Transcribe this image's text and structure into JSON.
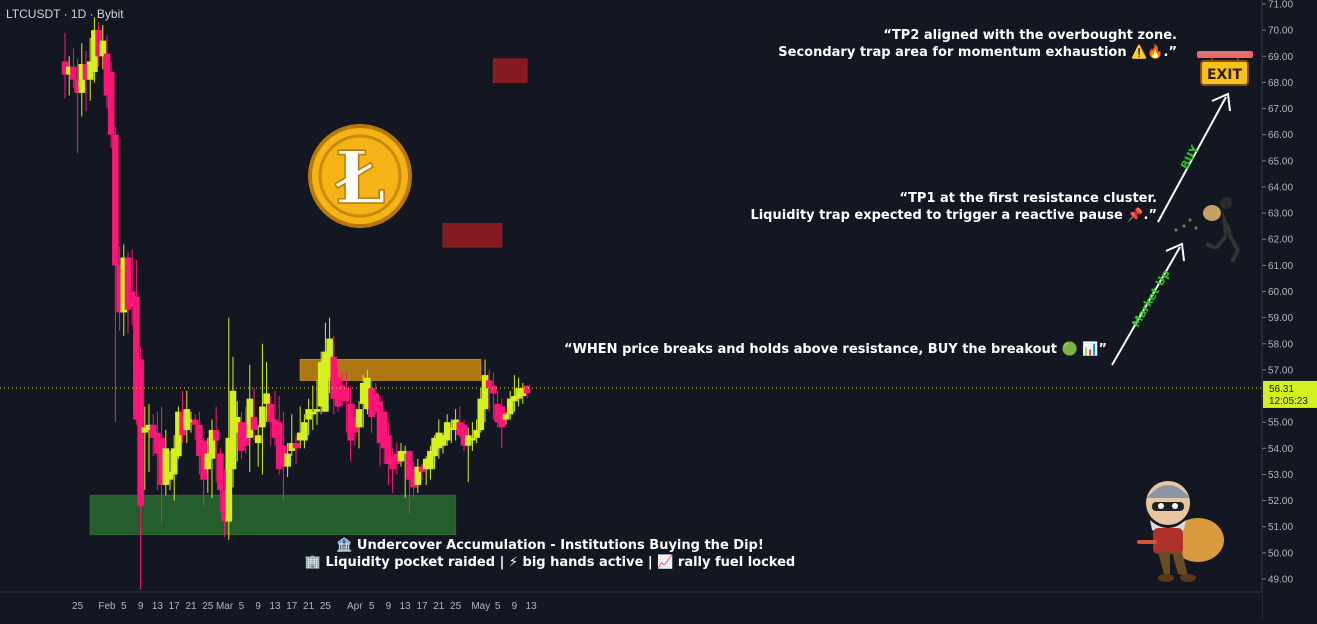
{
  "header": {
    "title": "LTCUSDT · 1D · Bybit"
  },
  "price_tag": {
    "price": "56.31",
    "countdown": "12:05:23"
  },
  "annotations": {
    "tp2_line1": "“TP2 aligned with the overbought zone.",
    "tp2_line2": "Secondary trap area for momentum exhaustion ⚠️🔥.”",
    "tp1_line1": "“TP1 at the first resistance cluster.",
    "tp1_line2": "Liquidity trap expected to trigger a reactive pause 📌.”",
    "breakout": "“WHEN price breaks and holds above resistance, BUY the breakout 🟢 📊”",
    "accum_line1": "🏦 Undercover Accumulation - Institutions Buying the Dip!",
    "accum_line2": "🏢 Liquidity pocket raided | ⚡ big hands active | 📈 rally fuel locked",
    "arrow1_label": "Market Up",
    "arrow2_label": "BUY",
    "exit_sign": "EXIT",
    "coin_symbol": "Ł"
  },
  "colors": {
    "bull": "#d4f01e",
    "bear": "#ff1478",
    "zone_red": "#9b1b22",
    "zone_orange": "#c8870e",
    "zone_green": "#2a6a2e",
    "arrow_label": "#29c41d"
  },
  "chart_data": {
    "type": "candlestick",
    "y_axis": {
      "min": 48.5,
      "max": 71.0,
      "ticks": [
        "49.00",
        "50.00",
        "51.00",
        "52.00",
        "53.00",
        "54.00",
        "55.00",
        "56.00",
        "57.00",
        "58.00",
        "59.00",
        "60.00",
        "61.00",
        "62.00",
        "63.00",
        "64.00",
        "65.00",
        "66.00",
        "67.00",
        "68.00",
        "69.00",
        "70.00",
        "71.00"
      ]
    },
    "x_axis": {
      "ticks": [
        {
          "label": "25",
          "date": "2025-01-25"
        },
        {
          "label": "Feb",
          "date": "2025-02-01"
        },
        {
          "label": "5",
          "date": "2025-02-05"
        },
        {
          "label": "9",
          "date": "2025-02-09"
        },
        {
          "label": "13",
          "date": "2025-02-13"
        },
        {
          "label": "17",
          "date": "2025-02-17"
        },
        {
          "label": "21",
          "date": "2025-02-21"
        },
        {
          "label": "25",
          "date": "2025-02-25"
        },
        {
          "label": "Mar",
          "date": "2025-03-01"
        },
        {
          "label": "5",
          "date": "2025-03-05"
        },
        {
          "label": "9",
          "date": "2025-03-09"
        },
        {
          "label": "13",
          "date": "2025-03-13"
        },
        {
          "label": "17",
          "date": "2025-03-17"
        },
        {
          "label": "21",
          "date": "2025-03-21"
        },
        {
          "label": "25",
          "date": "2025-03-25"
        },
        {
          "label": "Apr",
          "date": "2025-04-01"
        },
        {
          "label": "5",
          "date": "2025-04-05"
        },
        {
          "label": "9",
          "date": "2025-04-09"
        },
        {
          "label": "13",
          "date": "2025-04-13"
        },
        {
          "label": "17",
          "date": "2025-04-17"
        },
        {
          "label": "21",
          "date": "2025-04-21"
        },
        {
          "label": "25",
          "date": "2025-04-25"
        },
        {
          "label": "May",
          "date": "2025-05-01"
        },
        {
          "label": "5",
          "date": "2025-05-05"
        },
        {
          "label": "9",
          "date": "2025-05-09"
        },
        {
          "label": "13",
          "date": "2025-05-13"
        }
      ]
    },
    "current_price": 56.31,
    "candles": [
      {
        "d": "2025-01-22",
        "o": 68.8,
        "h": 69.9,
        "l": 67.4,
        "c": 68.3
      },
      {
        "d": "2025-01-23",
        "o": 68.3,
        "h": 69.0,
        "l": 67.5,
        "c": 68.6
      },
      {
        "d": "2025-01-24",
        "o": 68.6,
        "h": 69.3,
        "l": 67.8,
        "c": 68.1
      },
      {
        "d": "2025-01-25",
        "o": 68.1,
        "h": 68.9,
        "l": 65.3,
        "c": 67.6
      },
      {
        "d": "2025-01-26",
        "o": 67.6,
        "h": 69.5,
        "l": 66.7,
        "c": 68.7
      },
      {
        "d": "2025-01-27",
        "o": 68.7,
        "h": 69.2,
        "l": 66.9,
        "c": 68.1
      },
      {
        "d": "2025-01-28",
        "o": 68.1,
        "h": 69.7,
        "l": 67.3,
        "c": 68.8
      },
      {
        "d": "2025-01-29",
        "o": 68.4,
        "h": 70.5,
        "l": 68.0,
        "c": 70.0
      },
      {
        "d": "2025-01-30",
        "o": 70.0,
        "h": 70.3,
        "l": 68.6,
        "c": 69.0
      },
      {
        "d": "2025-01-31",
        "o": 69.0,
        "h": 70.2,
        "l": 68.5,
        "c": 69.6
      },
      {
        "d": "2025-02-01",
        "o": 69.1,
        "h": 69.8,
        "l": 67.0,
        "c": 67.5
      },
      {
        "d": "2025-02-02",
        "o": 68.4,
        "h": 68.8,
        "l": 65.5,
        "c": 66.0
      },
      {
        "d": "2025-02-03",
        "o": 66.0,
        "h": 66.3,
        "l": 55.0,
        "c": 61.0
      },
      {
        "d": "2025-02-04",
        "o": 61.0,
        "h": 61.7,
        "l": 58.5,
        "c": 59.2
      },
      {
        "d": "2025-02-05",
        "o": 59.2,
        "h": 61.8,
        "l": 58.3,
        "c": 61.3
      },
      {
        "d": "2025-02-06",
        "o": 61.3,
        "h": 61.5,
        "l": 58.4,
        "c": 59.3
      },
      {
        "d": "2025-02-07",
        "o": 60.0,
        "h": 61.6,
        "l": 58.7,
        "c": 59.4
      },
      {
        "d": "2025-02-08",
        "o": 59.8,
        "h": 61.2,
        "l": 54.9,
        "c": 55.1
      },
      {
        "d": "2025-02-09",
        "o": 57.4,
        "h": 57.9,
        "l": 48.6,
        "c": 51.8
      },
      {
        "d": "2025-02-10",
        "o": 54.6,
        "h": 55.6,
        "l": 52.4,
        "c": 54.8
      },
      {
        "d": "2025-02-11",
        "o": 54.7,
        "h": 55.7,
        "l": 53.1,
        "c": 54.9
      },
      {
        "d": "2025-02-12",
        "o": 54.9,
        "h": 55.3,
        "l": 53.7,
        "c": 54.4
      },
      {
        "d": "2025-02-13",
        "o": 54.6,
        "h": 55.4,
        "l": 52.4,
        "c": 53.8
      },
      {
        "d": "2025-02-14",
        "o": 54.4,
        "h": 55.6,
        "l": 51.1,
        "c": 52.6
      },
      {
        "d": "2025-02-15",
        "o": 52.6,
        "h": 54.7,
        "l": 52.2,
        "c": 54.0
      },
      {
        "d": "2025-02-16",
        "o": 52.8,
        "h": 53.9,
        "l": 52.4,
        "c": 53.1
      },
      {
        "d": "2025-02-17",
        "o": 53.0,
        "h": 54.5,
        "l": 52.0,
        "c": 54.0
      },
      {
        "d": "2025-02-18",
        "o": 53.7,
        "h": 55.6,
        "l": 53.6,
        "c": 55.4
      },
      {
        "d": "2025-02-19",
        "o": 55.4,
        "h": 56.2,
        "l": 54.2,
        "c": 54.5
      },
      {
        "d": "2025-02-20",
        "o": 54.7,
        "h": 56.2,
        "l": 54.2,
        "c": 55.5
      },
      {
        "d": "2025-02-21",
        "o": 55.0,
        "h": 55.4,
        "l": 54.6,
        "c": 55.1
      },
      {
        "d": "2025-02-22",
        "o": 55.1,
        "h": 55.3,
        "l": 54.3,
        "c": 54.9
      },
      {
        "d": "2025-02-23",
        "o": 54.9,
        "h": 55.4,
        "l": 53.0,
        "c": 53.7
      },
      {
        "d": "2025-02-24",
        "o": 54.3,
        "h": 54.4,
        "l": 51.8,
        "c": 52.8
      },
      {
        "d": "2025-02-25",
        "o": 53.2,
        "h": 54.4,
        "l": 52.3,
        "c": 53.8
      },
      {
        "d": "2025-02-26",
        "o": 53.6,
        "h": 55.1,
        "l": 52.1,
        "c": 54.7
      },
      {
        "d": "2025-02-27",
        "o": 54.7,
        "h": 55.6,
        "l": 52.7,
        "c": 54.3
      },
      {
        "d": "2025-02-28",
        "o": 53.8,
        "h": 54.0,
        "l": 51.6,
        "c": 52.4
      },
      {
        "d": "2025-03-01",
        "o": 52.4,
        "h": 53.2,
        "l": 50.6,
        "c": 51.2
      },
      {
        "d": "2025-03-02",
        "o": 51.2,
        "h": 59.0,
        "l": 50.5,
        "c": 54.4
      },
      {
        "d": "2025-03-03",
        "o": 53.2,
        "h": 57.5,
        "l": 52.5,
        "c": 56.2
      },
      {
        "d": "2025-03-04",
        "o": 54.6,
        "h": 55.8,
        "l": 53.5,
        "c": 55.2
      },
      {
        "d": "2025-03-05",
        "o": 55.0,
        "h": 55.4,
        "l": 53.6,
        "c": 53.9
      },
      {
        "d": "2025-03-06",
        "o": 55.0,
        "h": 55.6,
        "l": 53.8,
        "c": 54.1
      },
      {
        "d": "2025-03-07",
        "o": 54.4,
        "h": 57.2,
        "l": 53.1,
        "c": 55.9
      },
      {
        "d": "2025-03-08",
        "o": 55.2,
        "h": 56.3,
        "l": 54.3,
        "c": 54.7
      },
      {
        "d": "2025-03-09",
        "o": 54.2,
        "h": 54.9,
        "l": 53.3,
        "c": 54.5
      },
      {
        "d": "2025-03-10",
        "o": 54.8,
        "h": 58.0,
        "l": 53.0,
        "c": 55.6
      },
      {
        "d": "2025-03-11",
        "o": 55.7,
        "h": 57.3,
        "l": 55.0,
        "c": 56.1
      },
      {
        "d": "2025-03-12",
        "o": 55.7,
        "h": 56.0,
        "l": 54.1,
        "c": 55.0
      },
      {
        "d": "2025-03-13",
        "o": 55.1,
        "h": 56.2,
        "l": 54.1,
        "c": 54.4
      },
      {
        "d": "2025-03-14",
        "o": 55.0,
        "h": 56.0,
        "l": 53.0,
        "c": 53.2
      },
      {
        "d": "2025-03-15",
        "o": 54.1,
        "h": 55.4,
        "l": 52.0,
        "c": 53.3
      },
      {
        "d": "2025-03-16",
        "o": 53.3,
        "h": 54.2,
        "l": 52.9,
        "c": 53.8
      },
      {
        "d": "2025-03-17",
        "o": 53.9,
        "h": 55.3,
        "l": 53.7,
        "c": 54.2
      },
      {
        "d": "2025-03-18",
        "o": 54.2,
        "h": 54.5,
        "l": 53.4,
        "c": 54.0
      },
      {
        "d": "2025-03-19",
        "o": 54.3,
        "h": 55.6,
        "l": 54.0,
        "c": 54.6
      },
      {
        "d": "2025-03-20",
        "o": 54.3,
        "h": 55.3,
        "l": 54.0,
        "c": 55.0
      },
      {
        "d": "2025-03-21",
        "o": 55.1,
        "h": 55.9,
        "l": 54.5,
        "c": 55.5
      },
      {
        "d": "2025-03-22",
        "o": 55.3,
        "h": 56.4,
        "l": 54.7,
        "c": 55.4
      },
      {
        "d": "2025-03-23",
        "o": 55.4,
        "h": 56.6,
        "l": 54.9,
        "c": 55.5
      },
      {
        "d": "2025-03-24",
        "o": 55.6,
        "h": 57.7,
        "l": 55.3,
        "c": 57.3
      },
      {
        "d": "2025-03-25",
        "o": 55.4,
        "h": 58.8,
        "l": 55.4,
        "c": 57.7
      },
      {
        "d": "2025-03-26",
        "o": 56.7,
        "h": 59.0,
        "l": 56.1,
        "c": 58.2
      },
      {
        "d": "2025-03-27",
        "o": 57.5,
        "h": 58.3,
        "l": 55.3,
        "c": 55.9
      },
      {
        "d": "2025-03-28",
        "o": 56.7,
        "h": 57.1,
        "l": 55.4,
        "c": 55.6
      },
      {
        "d": "2025-03-29",
        "o": 56.4,
        "h": 56.9,
        "l": 55.6,
        "c": 55.8
      },
      {
        "d": "2025-03-30",
        "o": 56.3,
        "h": 56.9,
        "l": 54.6,
        "c": 55.8
      },
      {
        "d": "2025-03-31",
        "o": 55.7,
        "h": 56.4,
        "l": 53.5,
        "c": 54.3
      },
      {
        "d": "2025-04-01",
        "o": 55.2,
        "h": 55.7,
        "l": 54.1,
        "c": 54.6
      },
      {
        "d": "2025-04-02",
        "o": 54.8,
        "h": 55.8,
        "l": 54.0,
        "c": 55.5
      },
      {
        "d": "2025-04-03",
        "o": 55.7,
        "h": 56.8,
        "l": 54.8,
        "c": 56.5
      },
      {
        "d": "2025-04-04",
        "o": 55.5,
        "h": 57.0,
        "l": 55.3,
        "c": 56.7
      },
      {
        "d": "2025-04-05",
        "o": 56.3,
        "h": 56.7,
        "l": 54.6,
        "c": 55.2
      },
      {
        "d": "2025-04-06",
        "o": 56.1,
        "h": 56.5,
        "l": 55.3,
        "c": 55.4
      },
      {
        "d": "2025-04-07",
        "o": 55.8,
        "h": 56.0,
        "l": 53.3,
        "c": 54.2
      },
      {
        "d": "2025-04-08",
        "o": 55.4,
        "h": 55.4,
        "l": 53.4,
        "c": 54.0
      },
      {
        "d": "2025-04-09",
        "o": 54.5,
        "h": 55.0,
        "l": 52.6,
        "c": 53.4
      },
      {
        "d": "2025-04-10",
        "o": 53.7,
        "h": 54.0,
        "l": 52.3,
        "c": 53.2
      },
      {
        "d": "2025-04-11",
        "o": 53.8,
        "h": 54.2,
        "l": 53.0,
        "c": 53.4
      },
      {
        "d": "2025-04-12",
        "o": 53.5,
        "h": 54.2,
        "l": 53.3,
        "c": 53.9
      },
      {
        "d": "2025-04-13",
        "o": 53.8,
        "h": 54.1,
        "l": 52.1,
        "c": 53.9
      },
      {
        "d": "2025-04-14",
        "o": 53.9,
        "h": 53.9,
        "l": 51.5,
        "c": 52.8
      },
      {
        "d": "2025-04-15",
        "o": 53.2,
        "h": 53.5,
        "l": 52.1,
        "c": 52.5
      },
      {
        "d": "2025-04-16",
        "o": 52.6,
        "h": 53.6,
        "l": 52.3,
        "c": 53.3
      },
      {
        "d": "2025-04-17",
        "o": 53.3,
        "h": 53.4,
        "l": 52.8,
        "c": 53.1
      },
      {
        "d": "2025-04-18",
        "o": 53.2,
        "h": 53.7,
        "l": 52.6,
        "c": 53.6
      },
      {
        "d": "2025-04-19",
        "o": 53.2,
        "h": 54.1,
        "l": 52.8,
        "c": 53.9
      },
      {
        "d": "2025-04-20",
        "o": 53.7,
        "h": 54.5,
        "l": 53.2,
        "c": 54.4
      },
      {
        "d": "2025-04-21",
        "o": 54.0,
        "h": 55.1,
        "l": 53.6,
        "c": 54.6
      },
      {
        "d": "2025-04-22",
        "o": 54.1,
        "h": 54.6,
        "l": 53.8,
        "c": 54.5
      },
      {
        "d": "2025-04-23",
        "o": 54.3,
        "h": 55.3,
        "l": 54.1,
        "c": 55.0
      },
      {
        "d": "2025-04-24",
        "o": 54.7,
        "h": 55.1,
        "l": 54.2,
        "c": 54.8
      },
      {
        "d": "2025-04-25",
        "o": 54.7,
        "h": 55.5,
        "l": 54.3,
        "c": 55.1
      },
      {
        "d": "2025-04-26",
        "o": 55.0,
        "h": 55.6,
        "l": 54.4,
        "c": 54.5
      },
      {
        "d": "2025-04-27",
        "o": 54.9,
        "h": 55.1,
        "l": 53.9,
        "c": 54.1
      },
      {
        "d": "2025-04-28",
        "o": 54.1,
        "h": 54.8,
        "l": 52.7,
        "c": 54.5
      },
      {
        "d": "2025-04-29",
        "o": 54.3,
        "h": 55.0,
        "l": 53.9,
        "c": 54.4
      },
      {
        "d": "2025-04-30",
        "o": 54.4,
        "h": 55.1,
        "l": 54.2,
        "c": 54.7
      },
      {
        "d": "2025-05-01",
        "o": 54.7,
        "h": 56.3,
        "l": 54.6,
        "c": 55.9
      },
      {
        "d": "2025-05-02",
        "o": 55.5,
        "h": 57.4,
        "l": 55.0,
        "c": 56.8
      },
      {
        "d": "2025-05-03",
        "o": 56.6,
        "h": 57.0,
        "l": 55.4,
        "c": 56.3
      },
      {
        "d": "2025-05-04",
        "o": 56.4,
        "h": 56.9,
        "l": 55.1,
        "c": 56.1
      },
      {
        "d": "2025-05-05",
        "o": 55.7,
        "h": 56.2,
        "l": 54.8,
        "c": 55.0
      },
      {
        "d": "2025-05-06",
        "o": 55.6,
        "h": 55.9,
        "l": 54.0,
        "c": 54.8
      },
      {
        "d": "2025-05-07",
        "o": 55.1,
        "h": 55.4,
        "l": 54.9,
        "c": 55.3
      },
      {
        "d": "2025-05-08",
        "o": 55.3,
        "h": 56.2,
        "l": 55.1,
        "c": 55.9
      },
      {
        "d": "2025-05-09",
        "o": 55.8,
        "h": 56.8,
        "l": 55.4,
        "c": 56.0
      },
      {
        "d": "2025-05-10",
        "o": 55.9,
        "h": 56.7,
        "l": 55.6,
        "c": 56.3
      },
      {
        "d": "2025-05-11",
        "o": 56.0,
        "h": 56.5,
        "l": 55.7,
        "c": 56.3
      },
      {
        "d": "2025-05-12",
        "o": 56.4,
        "h": 56.4,
        "l": 55.9,
        "c": 56.1
      }
    ],
    "zones": [
      {
        "name": "tp2-zone",
        "from_date": "2025-05-04",
        "to_date": "2025-05-12",
        "low": 68.0,
        "high": 68.9,
        "color": "#9b1b22"
      },
      {
        "name": "tp1-zone",
        "from_date": "2025-04-22",
        "to_date": "2025-05-06",
        "low": 61.7,
        "high": 62.6,
        "color": "#9b1b22"
      },
      {
        "name": "resistance-zone",
        "from_date": "2025-03-19",
        "to_date": "2025-05-01",
        "low": 56.6,
        "high": 57.4,
        "color": "#c8870e"
      },
      {
        "name": "accumulation-zone",
        "from_date": "2025-01-28",
        "to_date": "2025-04-25",
        "low": 50.7,
        "high": 52.2,
        "color": "#2a6a2e"
      }
    ]
  }
}
